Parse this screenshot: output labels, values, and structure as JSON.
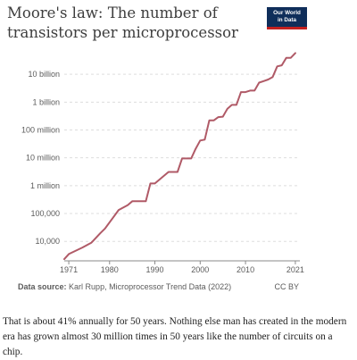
{
  "chart_data": {
    "type": "line",
    "title": "Moore's law: The number of transistors per microprocessor",
    "xlabel": "",
    "ylabel": "",
    "y_scale": "log",
    "xlim": [
      1970,
      2022
    ],
    "ylim": [
      2000,
      80000000000
    ],
    "x_ticks": [
      {
        "value": 1971,
        "label": "1971"
      },
      {
        "value": 1980,
        "label": "1980"
      },
      {
        "value": 1990,
        "label": "1990"
      },
      {
        "value": 2000,
        "label": "2000"
      },
      {
        "value": 2010,
        "label": "2010"
      },
      {
        "value": 2021,
        "label": "2021"
      }
    ],
    "y_ticks": [
      {
        "value": 10000,
        "label": "10,000"
      },
      {
        "value": 100000,
        "label": "100,000"
      },
      {
        "value": 1000000,
        "label": "1 million"
      },
      {
        "value": 10000000,
        "label": "10 million"
      },
      {
        "value": 100000000,
        "label": "100 million"
      },
      {
        "value": 1000000000,
        "label": "1 billion"
      },
      {
        "value": 10000000000,
        "label": "10 billion"
      }
    ],
    "grid": true,
    "series": [
      {
        "color": "#b05a67",
        "points": [
          [
            1970,
            2300
          ],
          [
            1971,
            3500
          ],
          [
            1974,
            6000
          ],
          [
            1976,
            9000
          ],
          [
            1978,
            20000
          ],
          [
            1979,
            29000
          ],
          [
            1982,
            134000
          ],
          [
            1984,
            200000
          ],
          [
            1985,
            275000
          ],
          [
            1988,
            275000
          ],
          [
            1989,
            1200000
          ],
          [
            1990,
            1200000
          ],
          [
            1993,
            3100000
          ],
          [
            1995,
            3100000
          ],
          [
            1996,
            9500000
          ],
          [
            1998,
            9500000
          ],
          [
            1999,
            21000000
          ],
          [
            2000,
            42000000
          ],
          [
            2001,
            45000000
          ],
          [
            2002,
            220000000
          ],
          [
            2003,
            220000000
          ],
          [
            2004,
            290000000
          ],
          [
            2005,
            300000000
          ],
          [
            2006,
            580000000
          ],
          [
            2007,
            800000000
          ],
          [
            2008,
            800000000
          ],
          [
            2009,
            2300000000
          ],
          [
            2010,
            2300000000
          ],
          [
            2011,
            2600000000
          ],
          [
            2012,
            2600000000
          ],
          [
            2013,
            5000000000
          ],
          [
            2014,
            5700000000
          ],
          [
            2015,
            6500000000
          ],
          [
            2016,
            8000000000
          ],
          [
            2017,
            19200000000
          ],
          [
            2018,
            21000000000
          ],
          [
            2019,
            39000000000
          ],
          [
            2020,
            39000000000
          ],
          [
            2021,
            58000000000
          ]
        ]
      }
    ]
  },
  "logo": {
    "line1": "Our World",
    "line2": "in Data"
  },
  "source": {
    "label": "Data source:",
    "text": "Karl Rupp, Microprocessor Trend Data (2022)"
  },
  "license": "CC BY",
  "caption": "That is about 41% annually for 50 years. Nothing else man has created in the modern era has grown almost 30 million times in 50 years like the number of circuits on a chip.",
  "colors": {
    "grid": "#dddddd",
    "axis": "#8a8a8a",
    "logo_bg": "#0f2e5a",
    "logo_accent": "#c2201f"
  }
}
